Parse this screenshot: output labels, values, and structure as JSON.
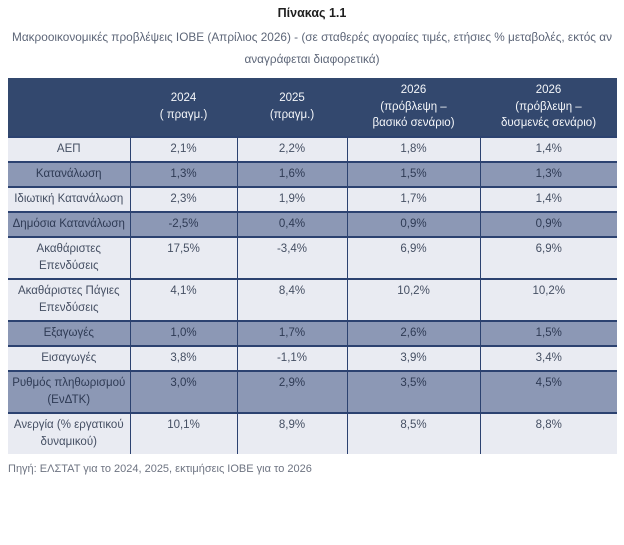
{
  "page": {
    "title": "Πίνακας 1.1",
    "subtitle": "Μακροοικονομικές προβλέψεις ΙΟΒΕ (Απρίλιος 2026)  - (σε σταθερές αγοραίες τιμές, ετήσιες % μεταβολές, εκτός αν αναγράφεται διαφορετικά)",
    "source_note": "Πηγή: ΕΛΣΤΑΤ για το 2024, 2025, εκτιμήσεις ΙΟΒΕ για το 2026"
  },
  "colors": {
    "header_bg": "#33486E",
    "row_light_bg": "#E9EBF2",
    "row_medium_bg": "#8C98B5",
    "border": "#2C4270",
    "header_text": "#F5F7FA",
    "body_text": "#454F63",
    "subtitle_text": "#5D6678",
    "source_text": "#6E7482"
  },
  "table": {
    "columns": [
      "",
      "2024\n( πραγμ.)",
      "2025\n(πραγμ.)",
      "2026\n(πρόβλεψη –\nβασικό σενάριο)",
      "2026\n(πρόβλεψη –\nδυσμενές σενάριο)"
    ],
    "rows": [
      {
        "label": "ΑΕΠ",
        "values": [
          "2,1%",
          "2,2%",
          "1,8%",
          "1,4%"
        ],
        "shade": "light"
      },
      {
        "label": "Κατανάλωση",
        "values": [
          "1,3%",
          "1,6%",
          "1,5%",
          "1,3%"
        ],
        "shade": "medium"
      },
      {
        "label": "Ιδιωτική Κατανάλωση",
        "values": [
          "2,3%",
          "1,9%",
          "1,7%",
          "1,4%"
        ],
        "shade": "light"
      },
      {
        "label": "Δημόσια Κατανάλωση",
        "values": [
          "-2,5%",
          "0,4%",
          "0,9%",
          "0,9%"
        ],
        "shade": "medium"
      },
      {
        "label": "Ακαθάριστες Επενδύσεις",
        "values": [
          "17,5%",
          "-3,4%",
          "6,9%",
          "6,9%"
        ],
        "shade": "light"
      },
      {
        "label": "Ακαθάριστες Πάγιες Επενδύσεις",
        "values": [
          "4,1%",
          "8,4%",
          "10,2%",
          "10,2%"
        ],
        "shade": "light"
      },
      {
        "label": "Εξαγωγές",
        "values": [
          "1,0%",
          "1,7%",
          "2,6%",
          "1,5%"
        ],
        "shade": "medium"
      },
      {
        "label": "Εισαγωγές",
        "values": [
          "3,8%",
          "-1,1%",
          "3,9%",
          "3,4%"
        ],
        "shade": "light"
      },
      {
        "label": "Ρυθμός πληθωρισμού (ΕνΔΤΚ)",
        "values": [
          "3,0%",
          "2,9%",
          "3,5%",
          "4,5%"
        ],
        "shade": "medium"
      },
      {
        "label": "Ανεργία (% εργατικού δυναμικού)",
        "values": [
          "10,1%",
          "8,9%",
          "8,5%",
          "8,8%"
        ],
        "shade": "light"
      }
    ]
  }
}
